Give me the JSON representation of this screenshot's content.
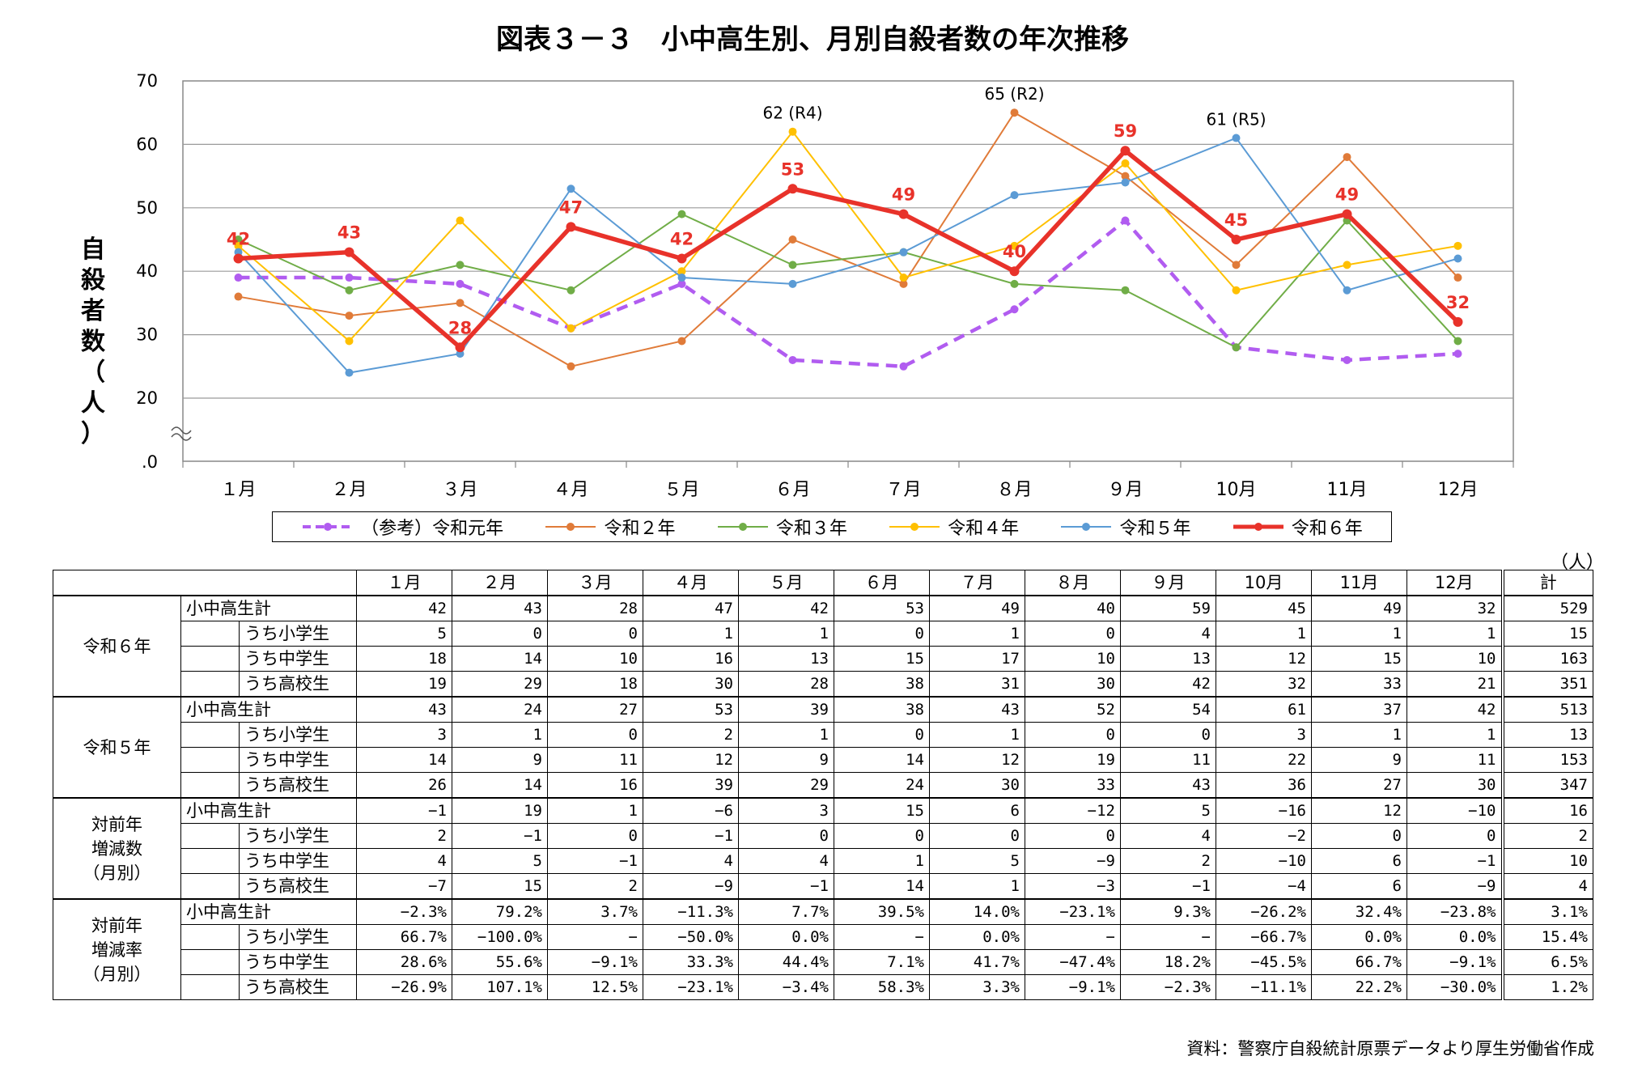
{
  "chart_data": {
    "type": "line",
    "title": "図表３－３　小中高生別、月別自殺者数の年次推移",
    "ylabel": "自殺者数（人）",
    "ylim": [
      20,
      70
    ],
    "ytick_labels": [
      "70",
      "60",
      "50",
      "40",
      "30",
      "20",
      ".0"
    ],
    "y_axis_break": true,
    "grid": true,
    "legend_position": "bottom",
    "categories": [
      "１月",
      "２月",
      "３月",
      "４月",
      "５月",
      "６月",
      "７月",
      "８月",
      "９月",
      "10月",
      "11月",
      "12月"
    ],
    "series": [
      {
        "name": "（参考）令和元年",
        "color": "#B15CF0",
        "style": "dashed",
        "values": [
          39,
          39,
          38,
          31,
          38,
          26,
          25,
          34,
          48,
          28,
          26,
          27
        ]
      },
      {
        "name": "令和２年",
        "color": "#E07B39",
        "style": "solid",
        "values": [
          36,
          33,
          35,
          25,
          29,
          45,
          38,
          65,
          55,
          41,
          58,
          39
        ]
      },
      {
        "name": "令和３年",
        "color": "#70AD47",
        "style": "solid",
        "values": [
          45,
          37,
          41,
          37,
          49,
          41,
          43,
          38,
          37,
          28,
          48,
          29
        ]
      },
      {
        "name": "令和４年",
        "color": "#FFC000",
        "style": "solid",
        "values": [
          44,
          29,
          48,
          31,
          40,
          62,
          39,
          44,
          57,
          37,
          41,
          44
        ]
      },
      {
        "name": "令和５年",
        "color": "#5B9BD5",
        "style": "solid",
        "values": [
          43,
          24,
          27,
          53,
          39,
          38,
          43,
          52,
          54,
          61,
          37,
          42
        ]
      },
      {
        "name": "令和６年",
        "color": "#E8322A",
        "style": "bold",
        "values": [
          42,
          43,
          28,
          47,
          42,
          53,
          49,
          40,
          59,
          45,
          49,
          32
        ]
      }
    ],
    "annotations": [
      {
        "text": "62 (R4)",
        "x": "６月",
        "y": 62
      },
      {
        "text": "65 (R2)",
        "x": "８月",
        "y": 65
      },
      {
        "text": "61 (R5)",
        "x": "10月",
        "y": 61
      }
    ],
    "data_labels_series": "令和６年"
  },
  "table": {
    "unit": "（人）",
    "headers": [
      "１月",
      "２月",
      "３月",
      "４月",
      "５月",
      "６月",
      "７月",
      "８月",
      "９月",
      "10月",
      "11月",
      "12月",
      "計"
    ],
    "groups": [
      {
        "label": "令和６年",
        "rows": [
          {
            "label": "小中高生計",
            "values": [
              "42",
              "43",
              "28",
              "47",
              "42",
              "53",
              "49",
              "40",
              "59",
              "45",
              "49",
              "32",
              "529"
            ]
          },
          {
            "label": "うち小学生",
            "values": [
              "5",
              "0",
              "0",
              "1",
              "1",
              "0",
              "1",
              "0",
              "4",
              "1",
              "1",
              "1",
              "15"
            ]
          },
          {
            "label": "うち中学生",
            "values": [
              "18",
              "14",
              "10",
              "16",
              "13",
              "15",
              "17",
              "10",
              "13",
              "12",
              "15",
              "10",
              "163"
            ]
          },
          {
            "label": "うち高校生",
            "values": [
              "19",
              "29",
              "18",
              "30",
              "28",
              "38",
              "31",
              "30",
              "42",
              "32",
              "33",
              "21",
              "351"
            ]
          }
        ]
      },
      {
        "label": "令和５年",
        "rows": [
          {
            "label": "小中高生計",
            "values": [
              "43",
              "24",
              "27",
              "53",
              "39",
              "38",
              "43",
              "52",
              "54",
              "61",
              "37",
              "42",
              "513"
            ]
          },
          {
            "label": "うち小学生",
            "values": [
              "3",
              "1",
              "0",
              "2",
              "1",
              "0",
              "1",
              "0",
              "0",
              "3",
              "1",
              "1",
              "13"
            ]
          },
          {
            "label": "うち中学生",
            "values": [
              "14",
              "9",
              "11",
              "12",
              "9",
              "14",
              "12",
              "19",
              "11",
              "22",
              "9",
              "11",
              "153"
            ]
          },
          {
            "label": "うち高校生",
            "values": [
              "26",
              "14",
              "16",
              "39",
              "29",
              "24",
              "30",
              "33",
              "43",
              "36",
              "27",
              "30",
              "347"
            ]
          }
        ]
      },
      {
        "label": "対前年\n増減数\n（月別）",
        "rows": [
          {
            "label": "小中高生計",
            "values": [
              "−1",
              "19",
              "1",
              "−6",
              "3",
              "15",
              "6",
              "−12",
              "5",
              "−16",
              "12",
              "−10",
              "16"
            ]
          },
          {
            "label": "うち小学生",
            "values": [
              "2",
              "−1",
              "0",
              "−1",
              "0",
              "0",
              "0",
              "0",
              "4",
              "−2",
              "0",
              "0",
              "2"
            ]
          },
          {
            "label": "うち中学生",
            "values": [
              "4",
              "5",
              "−1",
              "4",
              "4",
              "1",
              "5",
              "−9",
              "2",
              "−10",
              "6",
              "−1",
              "10"
            ]
          },
          {
            "label": "うち高校生",
            "values": [
              "−7",
              "15",
              "2",
              "−9",
              "−1",
              "14",
              "1",
              "−3",
              "−1",
              "−4",
              "6",
              "−9",
              "4"
            ]
          }
        ]
      },
      {
        "label": "対前年\n増減率\n（月別）",
        "rows": [
          {
            "label": "小中高生計",
            "values": [
              "−2.3%",
              "79.2%",
              "3.7%",
              "−11.3%",
              "7.7%",
              "39.5%",
              "14.0%",
              "−23.1%",
              "9.3%",
              "−26.2%",
              "32.4%",
              "−23.8%",
              "3.1%"
            ]
          },
          {
            "label": "うち小学生",
            "values": [
              "66.7%",
              "−100.0%",
              "−",
              "−50.0%",
              "0.0%",
              "−",
              "0.0%",
              "−",
              "−",
              "−66.7%",
              "0.0%",
              "0.0%",
              "15.4%"
            ]
          },
          {
            "label": "うち中学生",
            "values": [
              "28.6%",
              "55.6%",
              "−9.1%",
              "33.3%",
              "44.4%",
              "7.1%",
              "41.7%",
              "−47.4%",
              "18.2%",
              "−45.5%",
              "66.7%",
              "−9.1%",
              "6.5%"
            ]
          },
          {
            "label": "うち高校生",
            "values": [
              "−26.9%",
              "107.1%",
              "12.5%",
              "−23.1%",
              "−3.4%",
              "58.3%",
              "3.3%",
              "−9.1%",
              "−2.3%",
              "−11.1%",
              "22.2%",
              "−30.0%",
              "1.2%"
            ]
          }
        ]
      }
    ]
  },
  "source_note": "資料：警察庁自殺統計原票データより厚生労働省作成"
}
